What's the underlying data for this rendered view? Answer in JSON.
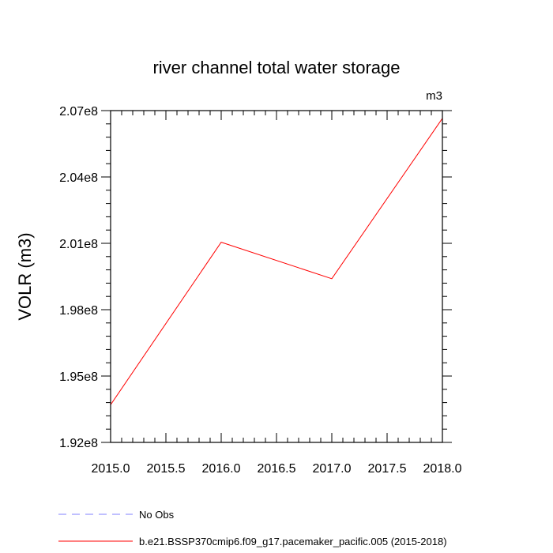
{
  "chart_data": {
    "type": "line",
    "title": "river channel total water storage",
    "units": "m3",
    "ylabel": "VOLR  (m3)",
    "xlabel": "",
    "xlim": [
      2015.0,
      2018.0
    ],
    "ylim": [
      192000000.0,
      207000000.0
    ],
    "x_ticks": [
      {
        "value": 2015.0,
        "label": "2015.0"
      },
      {
        "value": 2015.5,
        "label": "2015.5"
      },
      {
        "value": 2016.0,
        "label": "2016.0"
      },
      {
        "value": 2016.5,
        "label": "2016.5"
      },
      {
        "value": 2017.0,
        "label": "2017.0"
      },
      {
        "value": 2017.5,
        "label": "2017.5"
      },
      {
        "value": 2018.0,
        "label": "2018.0"
      }
    ],
    "y_ticks": [
      {
        "value": 192000000.0,
        "label": "1.92e8"
      },
      {
        "value": 195000000.0,
        "label": "1.95e8"
      },
      {
        "value": 198000000.0,
        "label": "1.98e8"
      },
      {
        "value": 201000000.0,
        "label": "2.01e8"
      },
      {
        "value": 204000000.0,
        "label": "2.04e8"
      },
      {
        "value": 207000000.0,
        "label": "2.07e8"
      }
    ],
    "grid": false,
    "legend_position": "bottom-left",
    "series": [
      {
        "name": "b.e21.BSSP370cmip6.f09_g17.pacemaker_pacific.005 (2015-2018)",
        "color": "#ff0000",
        "dash": "solid",
        "x": [
          2015.0,
          2016.0,
          2017.0,
          2018.0
        ],
        "values": [
          193700000.0,
          201050000.0,
          199400000.0,
          206650000.0
        ]
      }
    ],
    "legend": [
      {
        "label": "No Obs",
        "color": "#8080ff",
        "dash": "dashed"
      },
      {
        "label": "b.e21.BSSP370cmip6.f09_g17.pacemaker_pacific.005 (2015-2018)",
        "color": "#ff0000",
        "dash": "solid"
      }
    ]
  }
}
